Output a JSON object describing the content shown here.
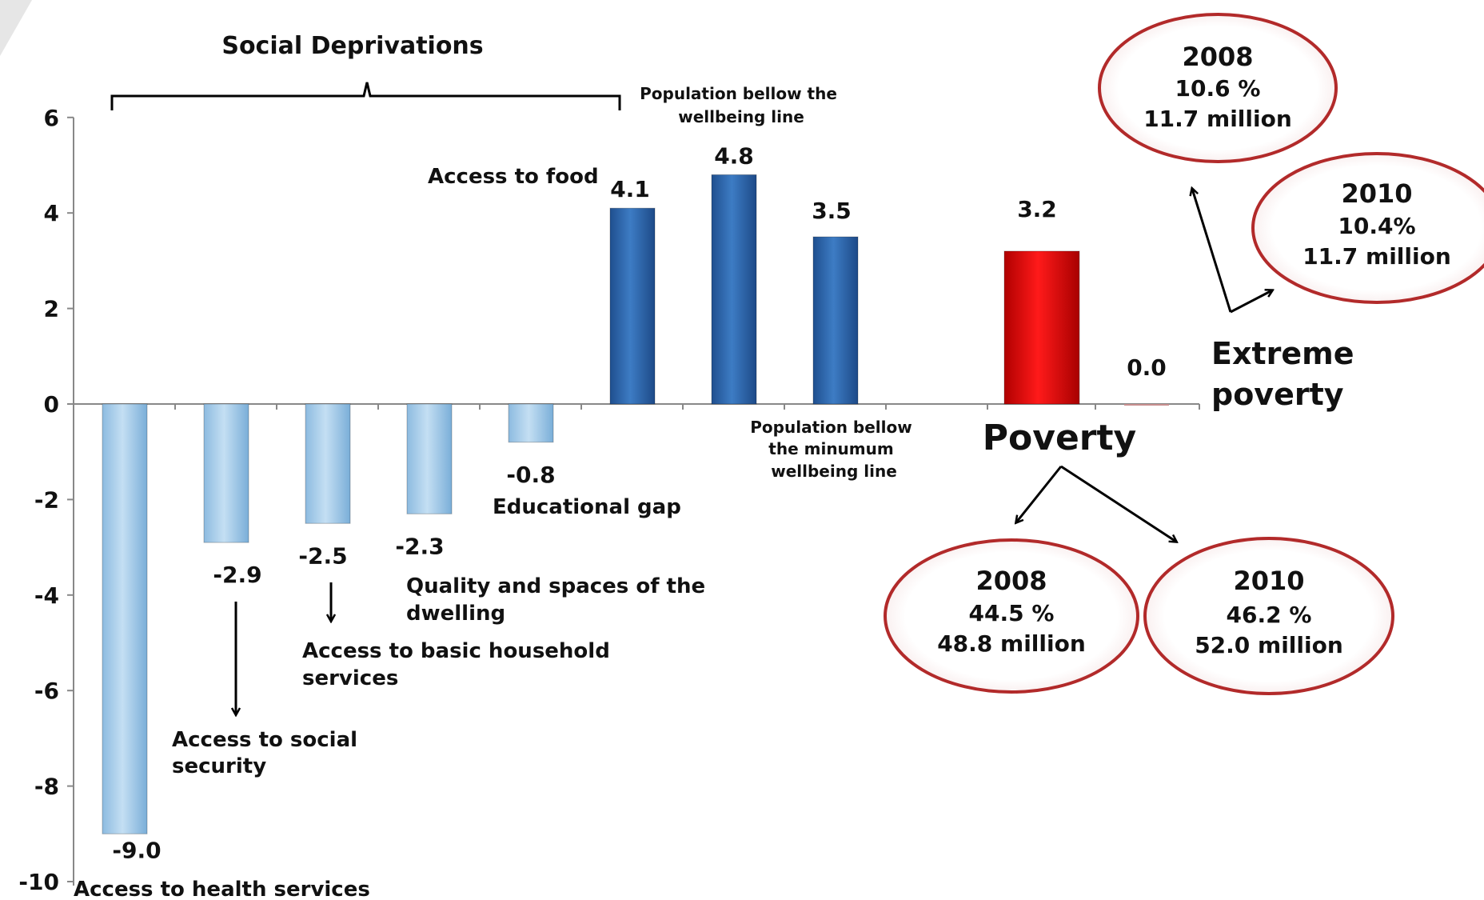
{
  "chart_data": {
    "type": "bar",
    "title": "Social Deprivations",
    "ylim": [
      -10,
      6
    ],
    "yticks": [
      6,
      4,
      2,
      0,
      -2,
      -4,
      -6,
      -8,
      -10
    ],
    "grid": false,
    "bars": [
      {
        "value": -9.0,
        "value_label": "-9.0",
        "group": "deprivation"
      },
      {
        "value": -2.9,
        "value_label": "-2.9",
        "group": "deprivation"
      },
      {
        "value": -2.5,
        "value_label": "-2.5",
        "group": "deprivation"
      },
      {
        "value": -2.3,
        "value_label": "-2.3",
        "group": "deprivation"
      },
      {
        "value": -0.8,
        "value_label": "-0.8",
        "group": "deprivation"
      },
      {
        "value": 4.1,
        "value_label": "4.1",
        "group": "deprivation"
      },
      {
        "value": 4.8,
        "value_label": "4.8",
        "group": "wellbeing"
      },
      {
        "value": 3.5,
        "value_label": "3.5",
        "group": "wellbeing"
      },
      {
        "value": 3.2,
        "value_label": "3.2",
        "group": "poverty"
      },
      {
        "value": 0.0,
        "value_label": "0.0",
        "group": "extreme"
      }
    ],
    "annotations": {
      "health": "Access to health services",
      "social_security": [
        "Access to social",
        "security"
      ],
      "basic_services": [
        "Access to basic household",
        "services"
      ],
      "dwelling": [
        "Quality and spaces  of the",
        "dwelling"
      ],
      "education": "Educational gap",
      "food": "Access to food",
      "wellbeing_line": [
        "Population bellow the",
        "wellbeing line"
      ],
      "min_wellbeing_line": [
        "Population bellow",
        "the minumum",
        "wellbeing line"
      ],
      "poverty": "Poverty",
      "extreme_poverty": [
        "Extreme",
        "poverty"
      ]
    },
    "callouts": {
      "extreme_2008": {
        "year": "2008",
        "pct": "10.6 %",
        "people": "11.7 million"
      },
      "extreme_2010": {
        "year": "2010",
        "pct": "10.4%",
        "people": "11.7 million"
      },
      "poverty_2008": {
        "year": "2008",
        "pct": "44.5 %",
        "people": "48.8 million"
      },
      "poverty_2010": {
        "year": "2010",
        "pct": "46.2 %",
        "people": "52.0 million"
      }
    },
    "colors": {
      "deprivation_light": "#a9cde9",
      "deprivation_dark": "#2f6db3",
      "poverty": "#e00000",
      "extreme": "#c99090",
      "callout_border": "#b22a2a"
    }
  }
}
